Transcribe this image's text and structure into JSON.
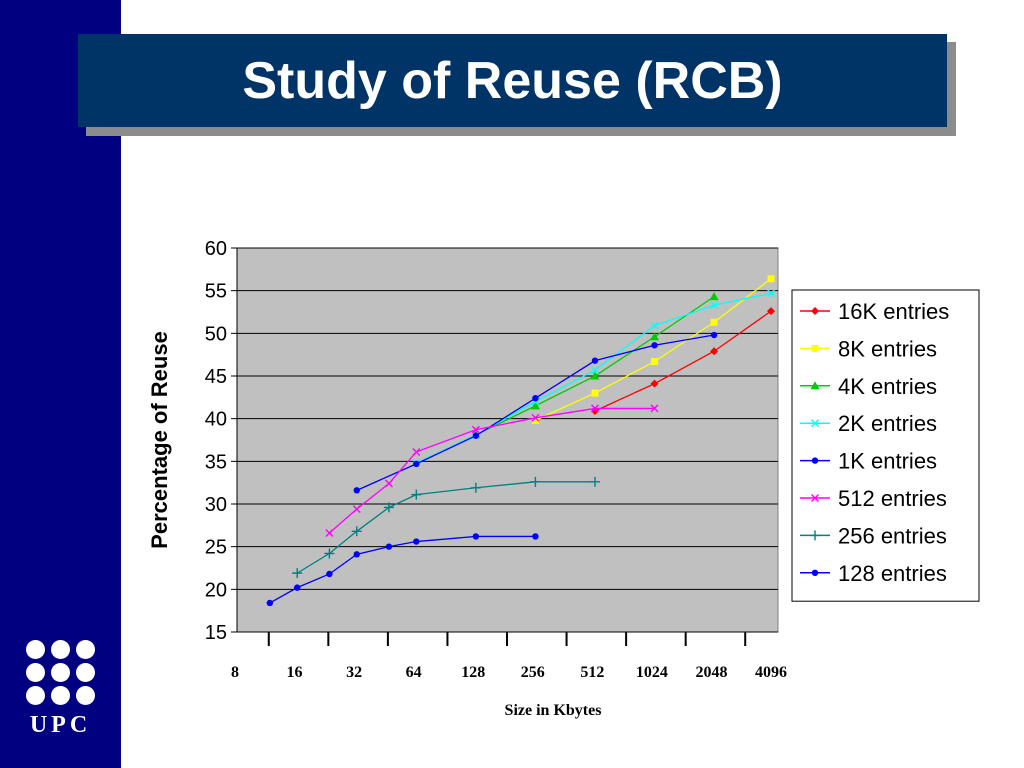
{
  "slide": {
    "title": "Study of Reuse (RCB)",
    "logo_text": "UPC",
    "sidebar_color": "#000080",
    "title_box_color": "#003366"
  },
  "chart_data": {
    "type": "line",
    "title": "",
    "xlabel": "Size in Kbytes",
    "ylabel": "Percentage of Reuse",
    "x_scale": "log2",
    "xlim": [
      8,
      4096
    ],
    "ylim": [
      15,
      60
    ],
    "x_ticks": [
      8,
      16,
      32,
      64,
      128,
      256,
      512,
      1024,
      2048,
      4096
    ],
    "y_ticks": [
      15,
      20,
      25,
      30,
      35,
      40,
      45,
      50,
      55,
      60
    ],
    "grid": "horizontal",
    "plot_background": "#c0c0c0",
    "legend_position": "right",
    "series": [
      {
        "name": "16K entries",
        "color": "#ff0000",
        "marker": "diamond",
        "x": [
          528,
          1056,
          2112,
          4096
        ],
        "y": [
          40.9,
          44.1,
          47.9,
          52.6
        ]
      },
      {
        "name": "8K entries",
        "color": "#ffff00",
        "marker": "square",
        "x": [
          264,
          528,
          1056,
          2112,
          4096
        ],
        "y": [
          39.8,
          43.0,
          46.7,
          51.3,
          56.4
        ]
      },
      {
        "name": "4K entries",
        "color": "#00cc00",
        "marker": "triangle",
        "x": [
          132,
          264,
          528,
          1056,
          2112
        ],
        "y": [
          38.1,
          41.5,
          45.0,
          49.6,
          54.3
        ]
      },
      {
        "name": "2K entries",
        "color": "#00ffff",
        "marker": "x",
        "x": [
          66,
          132,
          264,
          528,
          1056,
          2112,
          4096
        ],
        "y": [
          34.8,
          38.1,
          42.0,
          45.7,
          50.9,
          53.3,
          54.7
        ]
      },
      {
        "name": "1K entries",
        "color": "#0000ff",
        "marker": "circle",
        "x": [
          33,
          66,
          132,
          264,
          528,
          1056,
          2112
        ],
        "y": [
          31.6,
          34.7,
          38.0,
          42.4,
          46.8,
          48.6,
          49.8
        ]
      },
      {
        "name": "512 entries",
        "color": "#ff00ff",
        "marker": "x",
        "x": [
          24,
          33,
          48,
          66,
          132,
          264,
          528,
          1056
        ],
        "y": [
          26.6,
          29.4,
          32.4,
          36.1,
          38.7,
          40.1,
          41.2,
          41.2
        ]
      },
      {
        "name": "256 entries",
        "color": "#008080",
        "marker": "plus",
        "x": [
          16.5,
          24,
          33,
          48,
          66,
          132,
          264,
          528
        ],
        "y": [
          21.9,
          24.2,
          26.8,
          29.6,
          31.1,
          31.9,
          32.6,
          32.6
        ]
      },
      {
        "name": "128 entries",
        "color": "#0000ff",
        "marker": "circle",
        "x": [
          12,
          16.5,
          24,
          33,
          48,
          66,
          132,
          264
        ],
        "y": [
          18.4,
          20.2,
          21.8,
          24.1,
          25.0,
          25.6,
          26.2,
          26.2
        ]
      }
    ]
  }
}
